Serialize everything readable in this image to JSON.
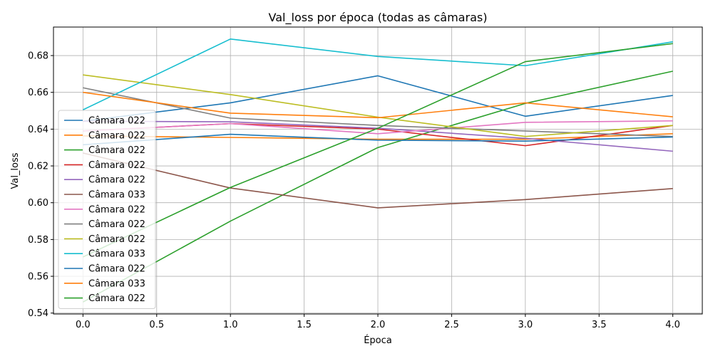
{
  "chart_data": {
    "type": "line",
    "title": "Val_loss por época (todas as câmaras)",
    "xlabel": "Época",
    "ylabel": "Val_loss",
    "x": [
      0,
      1,
      2,
      3,
      4
    ],
    "xlim": [
      -0.2,
      4.2
    ],
    "ylim": [
      0.5395,
      0.6955
    ],
    "xticks": [
      0.0,
      0.5,
      1.0,
      1.5,
      2.0,
      2.5,
      3.0,
      3.5,
      4.0
    ],
    "xtick_labels": [
      "0.0",
      "0.5",
      "1.0",
      "1.5",
      "2.0",
      "2.5",
      "3.0",
      "3.5",
      "4.0"
    ],
    "yticks": [
      0.54,
      0.56,
      0.58,
      0.6,
      0.62,
      0.64,
      0.66,
      0.68
    ],
    "ytick_labels": [
      "0.54",
      "0.56",
      "0.58",
      "0.60",
      "0.62",
      "0.64",
      "0.66",
      "0.68"
    ],
    "grid": true,
    "legend_position": "center-left",
    "series": [
      {
        "name": "Câmara 022",
        "color": "#1f77b4",
        "values": [
          0.6443,
          0.6543,
          0.669,
          0.647,
          0.6583
        ]
      },
      {
        "name": "Câmara 022",
        "color": "#ff7f0e",
        "values": [
          0.6363,
          0.6355,
          0.6345,
          0.6345,
          0.6375
        ]
      },
      {
        "name": "Câmara 022",
        "color": "#2ca02c",
        "values": [
          0.546,
          0.59,
          0.63,
          0.654,
          0.6715
        ]
      },
      {
        "name": "Câmara 022",
        "color": "#d62728",
        "values": [
          0.639,
          0.643,
          0.64,
          0.631,
          0.642
        ]
      },
      {
        "name": "Câmara 022",
        "color": "#9467bd",
        "values": [
          0.6443,
          0.644,
          0.6405,
          0.635,
          0.628
        ]
      },
      {
        "name": "Câmara 033",
        "color": "#8c564b",
        "values": [
          0.627,
          0.608,
          0.5972,
          0.6017,
          0.6077
        ]
      },
      {
        "name": "Câmara 022",
        "color": "#e377c2",
        "values": [
          0.639,
          0.643,
          0.6375,
          0.6437,
          0.6445
        ]
      },
      {
        "name": "Câmara 022",
        "color": "#7f7f7f",
        "values": [
          0.6625,
          0.646,
          0.642,
          0.639,
          0.636
        ]
      },
      {
        "name": "Câmara 022",
        "color": "#bcbd22",
        "values": [
          0.6695,
          0.6588,
          0.6465,
          0.636,
          0.642
        ]
      },
      {
        "name": "Câmara 033",
        "color": "#17becf",
        "values": [
          0.6505,
          0.689,
          0.6795,
          0.6745,
          0.6875
        ]
      },
      {
        "name": "Câmara 022",
        "color": "#1f77b4",
        "values": [
          0.6315,
          0.6372,
          0.634,
          0.6335,
          0.6357
        ]
      },
      {
        "name": "Câmara 033",
        "color": "#ff7f0e",
        "values": [
          0.66,
          0.6487,
          0.6462,
          0.6543,
          0.6467
        ]
      },
      {
        "name": "Câmara 022",
        "color": "#2ca02c",
        "values": [
          0.5705,
          0.6083,
          0.6405,
          0.6767,
          0.6865
        ]
      }
    ]
  }
}
